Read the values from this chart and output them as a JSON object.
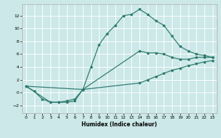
{
  "xlabel": "Humidex (Indice chaleur)",
  "bg_color": "#cce8e8",
  "line_color": "#2d7a6e",
  "grid_color": "#ffffff",
  "xlim": [
    -0.5,
    23.5
  ],
  "ylim": [
    -3.2,
    13.8
  ],
  "xticks": [
    0,
    1,
    2,
    3,
    4,
    5,
    6,
    7,
    8,
    9,
    10,
    11,
    12,
    13,
    14,
    15,
    16,
    17,
    18,
    19,
    20,
    21,
    22,
    23
  ],
  "yticks": [
    -2,
    0,
    2,
    4,
    6,
    8,
    10,
    12
  ],
  "line1_x": [
    0,
    1,
    2,
    3,
    4,
    5,
    6,
    7,
    8,
    9,
    10,
    11,
    12,
    13,
    14,
    15,
    16,
    17,
    18,
    19,
    20,
    21,
    22,
    23
  ],
  "line1_y": [
    1,
    0.2,
    -1.0,
    -1.5,
    -1.5,
    -1.5,
    -1.3,
    0.5,
    4.0,
    7.5,
    9.2,
    10.5,
    12.0,
    12.2,
    13.0,
    12.2,
    11.2,
    10.5,
    8.8,
    7.2,
    6.5,
    6.0,
    5.8,
    5.5
  ],
  "line2_x": [
    0,
    3,
    4,
    5,
    6,
    7,
    14,
    15,
    16,
    17,
    18,
    19,
    20,
    21,
    22,
    23
  ],
  "line2_y": [
    1,
    -1.5,
    -1.5,
    -1.3,
    -1.0,
    0.5,
    6.5,
    6.2,
    6.2,
    6.0,
    5.5,
    5.2,
    5.2,
    5.5,
    5.5,
    5.5
  ],
  "line3_x": [
    0,
    7,
    14,
    15,
    16,
    17,
    18,
    19,
    20,
    21,
    22,
    23
  ],
  "line3_y": [
    1,
    0.5,
    1.5,
    2.0,
    2.5,
    3.0,
    3.5,
    3.8,
    4.2,
    4.5,
    4.8,
    5.0
  ]
}
